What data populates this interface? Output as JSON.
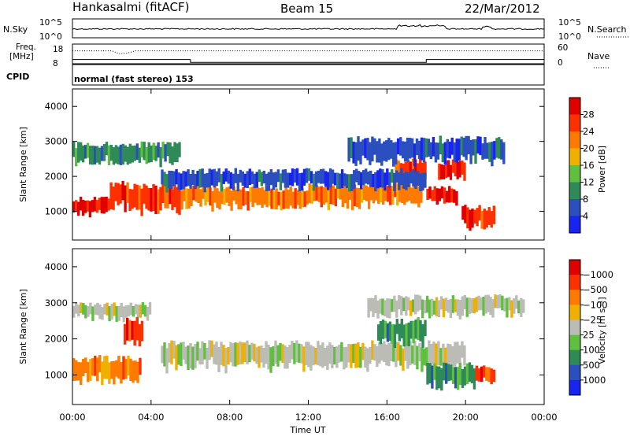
{
  "header": {
    "station": "Hankasalmi (fitACF)",
    "beam": "Beam 15",
    "date": "22/Mar/2012"
  },
  "chart_data": [
    {
      "type": "line",
      "panel": "noise",
      "left_label": "N.Sky",
      "right_label": "N.Search",
      "left_ticks": [
        "10^5",
        "10^0"
      ],
      "right_ticks": [
        "10^5",
        "10^0"
      ],
      "yscale": "log",
      "ylim": [
        1,
        100000
      ]
    },
    {
      "type": "line",
      "panel": "frequency",
      "left_label_top": "Freq.",
      "left_label_bottom": "[MHz]",
      "left_ticks": [
        18,
        8
      ],
      "ylim": [
        8,
        18
      ],
      "right_label": "Nave",
      "right_ticks": [
        60,
        0
      ],
      "right_ylim": [
        0,
        60
      ],
      "freq_segments": [
        {
          "x": [
            0,
            6
          ],
          "value": 10
        },
        {
          "x": [
            6,
            18
          ],
          "value": 8.3
        },
        {
          "x": [
            18,
            24
          ],
          "value": 10
        }
      ],
      "nave_approx": 42
    },
    {
      "type": "label",
      "panel": "cpid",
      "label": "CPID",
      "value": "normal (fast stereo) 153"
    },
    {
      "type": "heatmap",
      "panel": "power",
      "ylabel": "Slant Range [km]",
      "yticks": [
        1000,
        2000,
        3000,
        4000
      ],
      "ylim": [
        180,
        4500
      ],
      "colorbar_label": "Power [dB]",
      "colorbar_ticks": [
        "4",
        "8",
        "12",
        "16",
        "20",
        "24",
        "28"
      ],
      "colorbar_colors": [
        "#1a24f0",
        "#2b4fbf",
        "#2e8b57",
        "#5fbf3f",
        "#f0b000",
        "#ff7a00",
        "#ff3000",
        "#e00000"
      ],
      "bands": [
        {
          "x": [
            0,
            1.9
          ],
          "y": [
            900,
            1350
          ],
          "level": 7
        },
        {
          "x": [
            1.9,
            5.5
          ],
          "y": [
            1000,
            1750
          ],
          "level": 6
        },
        {
          "x": [
            5.5,
            12
          ],
          "y": [
            1100,
            1650
          ],
          "level": 5
        },
        {
          "x": [
            12,
            17.8
          ],
          "y": [
            1150,
            1750
          ],
          "level": 5
        },
        {
          "x": [
            18,
            19.6
          ],
          "y": [
            1200,
            1650
          ],
          "level": 7
        },
        {
          "x": [
            16.4,
            18
          ],
          "y": [
            1950,
            2450
          ],
          "level": 6
        },
        {
          "x": [
            18.6,
            20
          ],
          "y": [
            1900,
            2400
          ],
          "level": 7
        },
        {
          "x": [
            19.8,
            21.5
          ],
          "y": [
            550,
            1100
          ],
          "level": 6
        },
        {
          "x": [
            0,
            5.5
          ],
          "y": [
            2350,
            2900
          ],
          "level": 2
        },
        {
          "x": [
            4.5,
            18
          ],
          "y": [
            1650,
            2150
          ],
          "level": 1
        },
        {
          "x": [
            14,
            22
          ],
          "y": [
            2400,
            3050
          ],
          "level": 1
        }
      ]
    },
    {
      "type": "heatmap",
      "panel": "velocity",
      "ylabel": "Slant Range [km]",
      "yticks": [
        1000,
        2000,
        3000,
        4000
      ],
      "ylim": [
        180,
        4500
      ],
      "colorbar_label": "Velocity [m s⁻¹]",
      "colorbar_ticks": [
        "1000",
        "500",
        "100",
        "25",
        "−25",
        "−100",
        "−500",
        "−1000"
      ],
      "colorbar_colors": [
        "#1a24f0",
        "#2b4fbf",
        "#2e8b57",
        "#5fbf3f",
        "#bcbcb6",
        "#f0b000",
        "#ff7a00",
        "#ff3000",
        "#e00000"
      ],
      "bands": [
        {
          "x": [
            4.5,
            20
          ],
          "y": [
            1200,
            1850
          ],
          "level": 4
        },
        {
          "x": [
            0,
            4
          ],
          "y": [
            2550,
            2950
          ],
          "level": 4
        },
        {
          "x": [
            15,
            23
          ],
          "y": [
            2650,
            3150
          ],
          "level": 4
        },
        {
          "x": [
            0,
            3.5
          ],
          "y": [
            850,
            1450
          ],
          "level": 6
        },
        {
          "x": [
            2.6,
            3.6
          ],
          "y": [
            1800,
            2500
          ],
          "level": 7
        },
        {
          "x": [
            15.5,
            18
          ],
          "y": [
            1900,
            2500
          ],
          "level": 2
        },
        {
          "x": [
            18,
            20.5
          ],
          "y": [
            650,
            1250
          ],
          "level": 2
        },
        {
          "x": [
            20.5,
            21.5
          ],
          "y": [
            800,
            1200
          ],
          "level": 7
        }
      ]
    }
  ],
  "x_axis": {
    "label": "Time UT",
    "ticks": [
      "00:00",
      "04:00",
      "08:00",
      "12:00",
      "16:00",
      "20:00",
      "00:00"
    ],
    "range_hours": [
      0,
      24
    ]
  }
}
